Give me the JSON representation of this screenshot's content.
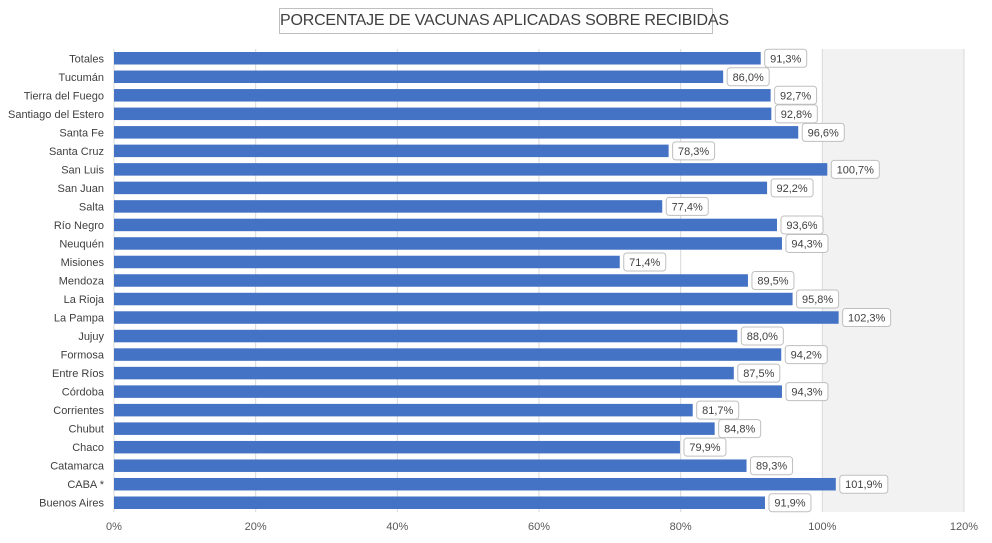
{
  "chart_data": {
    "type": "bar",
    "orientation": "horizontal",
    "title": "PORCENTAJE DE VACUNAS APLICADAS SOBRE RECIBIDAS",
    "categories": [
      "Totales",
      "Tucumán",
      "Tierra del Fuego",
      "Santiago del Estero",
      "Santa Fe",
      "Santa Cruz",
      "San Luis",
      "San Juan",
      "Salta",
      "Río Negro",
      "Neuquén",
      "Misiones",
      "Mendoza",
      "La Rioja",
      "La Pampa",
      "Jujuy",
      "Formosa",
      "Entre Ríos",
      "Córdoba",
      "Corrientes",
      "Chubut",
      "Chaco",
      "Catamarca",
      "CABA *",
      "Buenos Aires"
    ],
    "values": [
      91.3,
      86.0,
      92.7,
      92.8,
      96.6,
      78.3,
      100.7,
      92.2,
      77.4,
      93.6,
      94.3,
      71.4,
      89.5,
      95.8,
      102.3,
      88.0,
      94.2,
      87.5,
      94.3,
      81.7,
      84.8,
      79.9,
      89.3,
      101.9,
      91.9
    ],
    "data_labels": [
      "91,3%",
      "86,0%",
      "92,7%",
      "92,8%",
      "96,6%",
      "78,3%",
      "100,7%",
      "92,2%",
      "77,4%",
      "93,6%",
      "94,3%",
      "71,4%",
      "89,5%",
      "95,8%",
      "102,3%",
      "88,0%",
      "94,2%",
      "87,5%",
      "94,3%",
      "81,7%",
      "84,8%",
      "79,9%",
      "89,3%",
      "101,9%",
      "91,9%"
    ],
    "xlim": [
      0,
      120
    ],
    "x_ticks": [
      0,
      20,
      40,
      60,
      80,
      100,
      120
    ],
    "x_tick_labels": [
      "0%",
      "20%",
      "40%",
      "60%",
      "80%",
      "100%",
      "120%"
    ],
    "xlabel": "",
    "ylabel": "",
    "grid": true,
    "shaded_band": [
      100,
      120
    ],
    "colors": {
      "bar": "#4472c4",
      "band": "#f2f2f2",
      "grid": "#d9d9d9"
    }
  }
}
